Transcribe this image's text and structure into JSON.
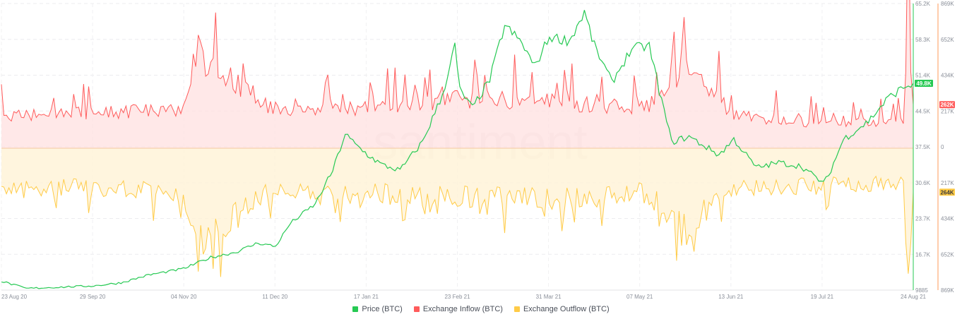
{
  "watermark": "santiment",
  "chart_data": {
    "type": "line",
    "x_labels": [
      "23 Aug 20",
      "29 Sep 20",
      "04 Nov 20",
      "11 Dec 20",
      "17 Jan 21",
      "23 Feb 21",
      "31 Mar 21",
      "07 May 21",
      "13 Jun 21",
      "19 Jul 21",
      "24 Aug 21"
    ],
    "y_ticks_price": [
      "65.2K",
      "58.3K",
      "51.4K",
      "44.5K",
      "37.5K",
      "30.6K",
      "23.7K",
      "16.7K",
      "9885"
    ],
    "y_ticks_flow": [
      "869K",
      "652K",
      "434K",
      "217K",
      "0",
      "217K",
      "434K",
      "652K",
      "869K"
    ],
    "current_values": {
      "price": "49.8K",
      "inflow": "262K",
      "outflow": "264K"
    },
    "price_ylim": [
      9885,
      65200
    ],
    "flow_ylim": [
      -869000,
      869000
    ],
    "legend": [
      {
        "label": "Price (BTC)",
        "color": "#26c953"
      },
      {
        "label": "Exchange Inflow (BTC)",
        "color": "#ff5b5b"
      },
      {
        "label": "Exchange Outflow (BTC)",
        "color": "#ffcb47"
      }
    ],
    "series": [
      {
        "name": "Price (BTC)",
        "color": "#26c953",
        "x": [
          "2020-08-23",
          "2020-09-02",
          "2020-09-12",
          "2020-09-29",
          "2020-10-10",
          "2020-10-21",
          "2020-11-04",
          "2020-11-15",
          "2020-11-25",
          "2020-12-04",
          "2020-12-11",
          "2020-12-17",
          "2020-12-27",
          "2021-01-03",
          "2021-01-08",
          "2021-01-12",
          "2021-01-17",
          "2021-01-23",
          "2021-01-30",
          "2021-02-08",
          "2021-02-16",
          "2021-02-21",
          "2021-02-23",
          "2021-02-28",
          "2021-03-07",
          "2021-03-13",
          "2021-03-20",
          "2021-03-25",
          "2021-03-31",
          "2021-04-08",
          "2021-04-14",
          "2021-04-18",
          "2021-04-25",
          "2021-05-03",
          "2021-05-10",
          "2021-05-14",
          "2021-05-19",
          "2021-05-26",
          "2021-06-07",
          "2021-06-13",
          "2021-06-22",
          "2021-07-01",
          "2021-07-10",
          "2021-07-19",
          "2021-07-21",
          "2021-07-27",
          "2021-08-06",
          "2021-08-14",
          "2021-08-20",
          "2021-08-24"
        ],
        "values": [
          11600,
          10200,
          10400,
          10700,
          11300,
          12800,
          14000,
          16200,
          17200,
          19000,
          18300,
          22800,
          26500,
          33000,
          40000,
          38000,
          36000,
          34000,
          33000,
          38500,
          47500,
          57000,
          48500,
          45000,
          50500,
          61000,
          57500,
          53000,
          58800,
          58000,
          63500,
          57000,
          50000,
          56500,
          57000,
          48500,
          38500,
          39500,
          36000,
          39000,
          33500,
          34500,
          33800,
          30500,
          32000,
          39000,
          42500,
          47000,
          49000,
          49800
        ]
      },
      {
        "name": "Exchange Inflow (BTC)",
        "color": "#ff5b5b",
        "x": [
          "2020-08-23",
          "2020-09-29",
          "2020-11-04",
          "2020-11-09",
          "2020-12-11",
          "2021-01-17",
          "2021-02-23",
          "2021-03-31",
          "2021-05-07",
          "2021-05-19",
          "2021-05-23",
          "2021-06-13",
          "2021-07-19",
          "2021-08-20",
          "2021-08-22",
          "2021-08-24"
        ],
        "values": [
          210000,
          230000,
          250000,
          620000,
          240000,
          260000,
          320000,
          300000,
          260000,
          360000,
          600000,
          210000,
          160000,
          180000,
          850000,
          262000
        ]
      },
      {
        "name": "Exchange Outflow (BTC)",
        "color": "#ffcb47",
        "x": [
          "2020-08-23",
          "2020-09-29",
          "2020-11-04",
          "2020-11-09",
          "2020-12-11",
          "2021-01-17",
          "2021-02-23",
          "2021-03-31",
          "2021-05-07",
          "2021-05-19",
          "2021-05-23",
          "2021-06-13",
          "2021-07-19",
          "2021-08-20",
          "2021-08-22",
          "2021-08-24"
        ],
        "values": [
          -260000,
          -240000,
          -270000,
          -580000,
          -250000,
          -270000,
          -300000,
          -320000,
          -270000,
          -400000,
          -520000,
          -250000,
          -230000,
          -210000,
          -850000,
          -264000
        ]
      }
    ],
    "grid": true
  }
}
